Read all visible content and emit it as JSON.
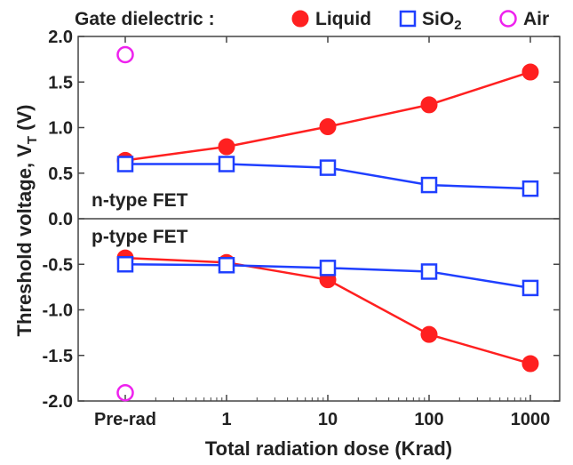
{
  "chart_data": {
    "type": "line",
    "legend_title": "Gate dielectric :",
    "legend_placement": "top",
    "categories": [
      "Pre-rad",
      "1",
      "10",
      "100",
      "1000"
    ],
    "xlabel": "Total radiation dose (Krad)",
    "ylabel": "Threshold voltage, V",
    "ylabel_subscript": "T",
    "ylabel_unit": " (V)",
    "ylim": [
      -2.0,
      2.0
    ],
    "yticks": [
      "2.0",
      "1.5",
      "1.0",
      "0.5",
      "0.0",
      "-0.5",
      "-1.0",
      "-1.5",
      "-2.0"
    ],
    "ytick_values": [
      2.0,
      1.5,
      1.0,
      0.5,
      0.0,
      -0.5,
      -1.0,
      -1.5,
      -2.0
    ],
    "grid": false,
    "panel_labels": [
      "n-type FET",
      "p-type FET"
    ],
    "legend": [
      {
        "key": "liquid",
        "label": "Liquid",
        "marker": "filled-circle",
        "color": "#ff2020"
      },
      {
        "key": "sio2",
        "label": "SiO",
        "label_subscript": "2",
        "marker": "open-square",
        "color": "#1f3fff"
      },
      {
        "key": "air",
        "label": "Air",
        "marker": "open-circle",
        "color": "#ee22ee"
      }
    ],
    "series": [
      {
        "key": "liquid",
        "type": "n",
        "color": "#ff2020",
        "marker": "filled-circle",
        "line": true,
        "values": [
          0.64,
          0.79,
          1.01,
          1.25,
          1.61
        ]
      },
      {
        "key": "sio2",
        "type": "n",
        "color": "#1f3fff",
        "marker": "open-square",
        "line": true,
        "values": [
          0.6,
          0.6,
          0.56,
          0.37,
          0.33
        ]
      },
      {
        "key": "liquid",
        "type": "p",
        "color": "#ff2020",
        "marker": "filled-circle",
        "line": true,
        "values": [
          -0.43,
          -0.48,
          -0.67,
          -1.27,
          -1.59
        ]
      },
      {
        "key": "sio2",
        "type": "p",
        "color": "#1f3fff",
        "marker": "open-square",
        "line": true,
        "values": [
          -0.5,
          -0.51,
          -0.54,
          -0.58,
          -0.76
        ]
      },
      {
        "key": "air",
        "type": "n",
        "color": "#ee22ee",
        "marker": "open-circle",
        "line": false,
        "values": [
          1.8,
          null,
          null,
          null,
          null
        ]
      },
      {
        "key": "air",
        "type": "p",
        "color": "#ee22ee",
        "marker": "open-circle",
        "line": false,
        "values": [
          -1.91,
          null,
          null,
          null,
          null
        ]
      }
    ]
  }
}
